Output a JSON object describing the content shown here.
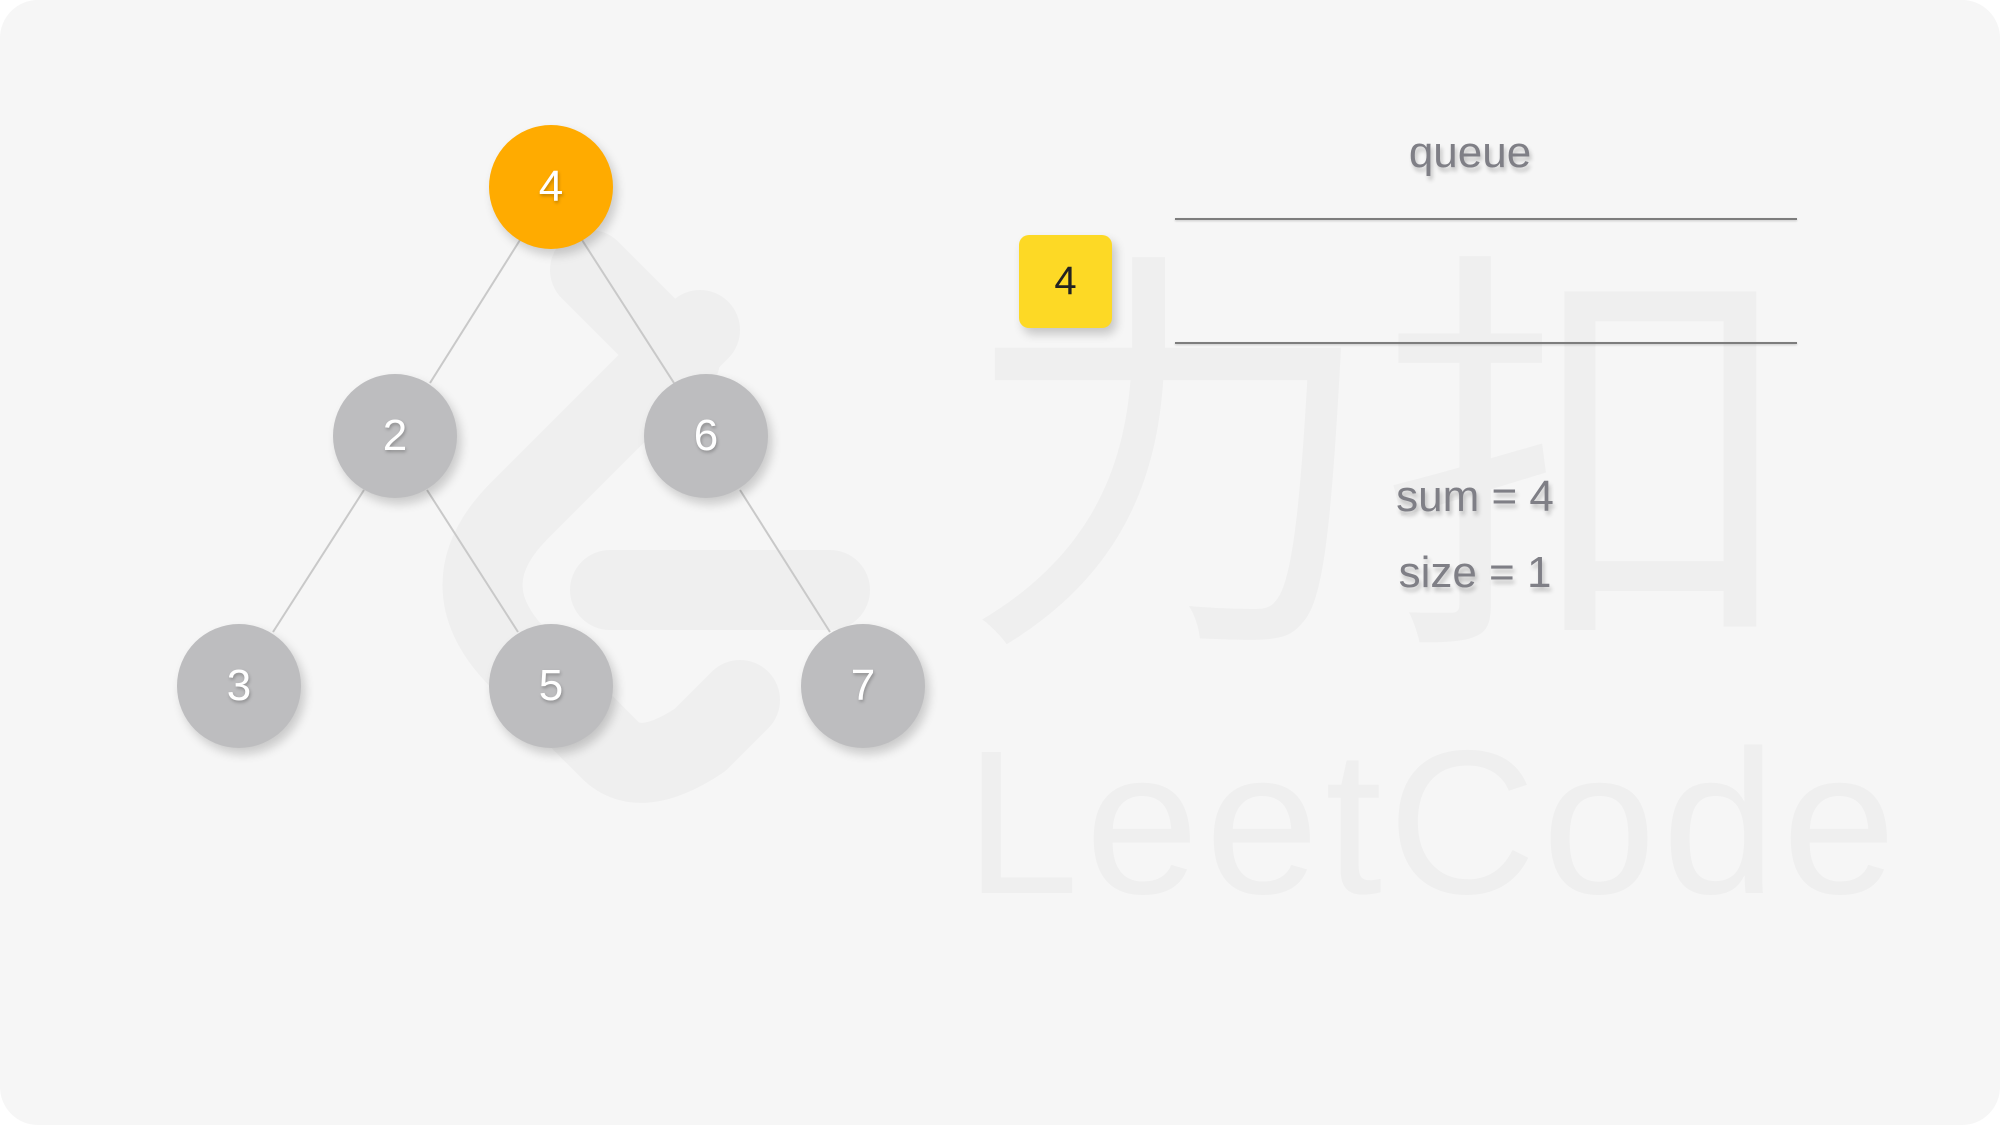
{
  "watermark": {
    "brand_cjk": "力扣",
    "brand_latin": "LeetCode"
  },
  "tree": {
    "nodes": [
      {
        "id": "n4",
        "label": "4",
        "state": "active"
      },
      {
        "id": "n2",
        "label": "2",
        "state": "default"
      },
      {
        "id": "n6",
        "label": "6",
        "state": "default"
      },
      {
        "id": "n3",
        "label": "3",
        "state": "default"
      },
      {
        "id": "n5",
        "label": "5",
        "state": "default"
      },
      {
        "id": "n7",
        "label": "7",
        "state": "default"
      }
    ],
    "edges": [
      {
        "from": "4",
        "to": "2"
      },
      {
        "from": "4",
        "to": "6"
      },
      {
        "from": "2",
        "to": "3"
      },
      {
        "from": "2",
        "to": "5"
      },
      {
        "from": "6",
        "to": "7"
      }
    ]
  },
  "queue": {
    "title": "queue",
    "items": [
      "4"
    ]
  },
  "stats": {
    "sum_text": "sum = 4",
    "size_text": "size = 1"
  },
  "colors": {
    "active_node": "#ffab00",
    "default_node": "#bdbdbf",
    "queue_item": "#fdd925",
    "background": "#f6f6f6"
  }
}
